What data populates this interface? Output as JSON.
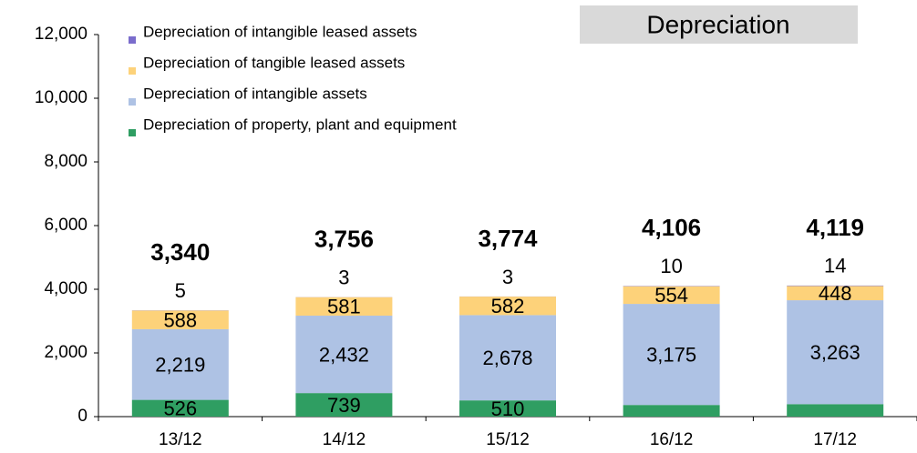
{
  "chart_data": {
    "type": "stacked_bar",
    "title": "Depreciation",
    "categories": [
      "13/12",
      "14/12",
      "15/12",
      "16/12",
      "17/12"
    ],
    "series": [
      {
        "name": "Depreciation of property, plant and equipment",
        "color": "#2f9e62",
        "values": [
          526,
          739,
          510,
          366,
          392
        ]
      },
      {
        "name": "Depreciation of intangible assets",
        "color": "#aec2e4",
        "values": [
          2219,
          2432,
          2678,
          3175,
          3263
        ],
        "value_labels": [
          "2,219",
          "2,432",
          "2,678",
          "3,175",
          "3,263"
        ]
      },
      {
        "name": "Depreciation of tangible leased assets",
        "color": "#fdd27a",
        "values": [
          588,
          581,
          582,
          554,
          448
        ]
      },
      {
        "name": "Depreciation of intangible leased assets",
        "color": "#7a6ccc",
        "values": [
          5,
          3,
          3,
          10,
          14
        ]
      }
    ],
    "totals": {
      "values": [
        3340,
        3756,
        3774,
        4106,
        4119
      ],
      "value_labels": [
        "3,340",
        "3,756",
        "3,774",
        "4,106",
        "4,119"
      ]
    },
    "ylim": [
      0,
      12000
    ],
    "yticks": [
      0,
      {
        "value": 2000,
        "label": "2,000"
      },
      {
        "value": 4000,
        "label": "4,000"
      },
      {
        "value": 6000,
        "label": "6,000"
      },
      {
        "value": 8000,
        "label": "8,000"
      },
      {
        "value": 10000,
        "label": "10,000"
      },
      {
        "value": 12000,
        "label": "12,000"
      }
    ]
  }
}
